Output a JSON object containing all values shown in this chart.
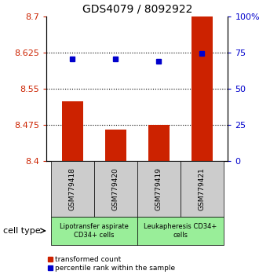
{
  "title": "GDS4079 / 8092922",
  "samples": [
    "GSM779418",
    "GSM779420",
    "GSM779419",
    "GSM779421"
  ],
  "bar_values": [
    8.525,
    8.465,
    8.475,
    8.7
  ],
  "bar_base": 8.4,
  "percentile_values": [
    8.612,
    8.612,
    8.608,
    8.623
  ],
  "bar_color": "#cc2200",
  "percentile_color": "#0000cc",
  "ylim_left": [
    8.4,
    8.7
  ],
  "ylim_right": [
    0,
    100
  ],
  "yticks_left": [
    8.4,
    8.475,
    8.55,
    8.625,
    8.7
  ],
  "yticks_right": [
    0,
    25,
    50,
    75,
    100
  ],
  "ytick_labels_left": [
    "8.4",
    "8.475",
    "8.55",
    "8.625",
    "8.7"
  ],
  "ytick_labels_right": [
    "0",
    "25",
    "50",
    "75",
    "100%"
  ],
  "hlines": [
    8.475,
    8.55,
    8.625
  ],
  "group1_label": "Lipotransfer aspirate\nCD34+ cells",
  "group2_label": "Leukapheresis CD34+\ncells",
  "sample_box_color": "#cccccc",
  "group1_color": "#99ee99",
  "group2_color": "#99ee99",
  "group1_indices": [
    0,
    1
  ],
  "group2_indices": [
    2,
    3
  ],
  "legend_bar_label": "transformed count",
  "legend_pct_label": "percentile rank within the sample",
  "cell_type_label": "cell type",
  "bar_width": 0.5,
  "marker_size": 5,
  "title_fontsize": 10,
  "tick_fontsize": 8,
  "sample_fontsize": 6.5,
  "group_fontsize": 6,
  "legend_fontsize": 6.5,
  "cell_type_fontsize": 8
}
